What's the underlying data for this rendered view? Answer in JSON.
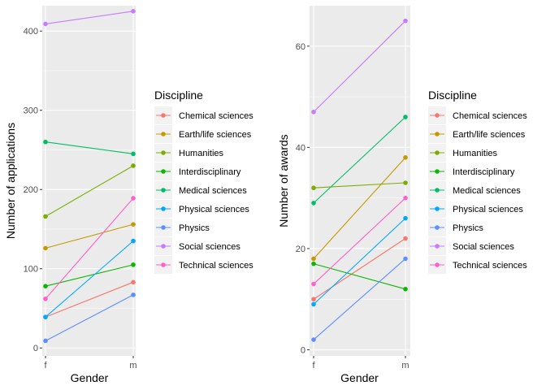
{
  "chart_data": [
    {
      "type": "line",
      "xlabel": "Gender",
      "ylabel": "Number of applications",
      "categories": [
        "f",
        "m"
      ],
      "yticks": [
        0,
        100,
        200,
        300,
        400
      ],
      "ylim": [
        -10,
        432
      ],
      "grid": true,
      "legend_title": "Discipline",
      "legend_position": "right",
      "series": [
        {
          "name": "Chemical sciences",
          "color": "#F8766D",
          "values": [
            39,
            83
          ]
        },
        {
          "name": "Earth/life sciences",
          "color": "#C49A00",
          "values": [
            126,
            156
          ]
        },
        {
          "name": "Humanities",
          "color": "#7CAE00",
          "values": [
            166,
            230
          ]
        },
        {
          "name": "Interdisciplinary",
          "color": "#0CB702",
          "values": [
            78,
            105
          ]
        },
        {
          "name": "Medical sciences",
          "color": "#00BE67",
          "values": [
            260,
            245
          ]
        },
        {
          "name": "Physical sciences",
          "color": "#00A9FF",
          "values": [
            39,
            135
          ]
        },
        {
          "name": "Physics",
          "color": "#5E8EFF",
          "values": [
            9,
            67
          ]
        },
        {
          "name": "Social sciences",
          "color": "#C77CFF",
          "values": [
            409,
            425
          ]
        },
        {
          "name": "Technical sciences",
          "color": "#FF61CC",
          "values": [
            62,
            189
          ]
        }
      ]
    },
    {
      "type": "line",
      "xlabel": "Gender",
      "ylabel": "Number of awards",
      "categories": [
        "f",
        "m"
      ],
      "yticks": [
        0,
        20,
        40,
        60
      ],
      "ylim": [
        -1.2,
        68
      ],
      "grid": true,
      "legend_title": "Discipline",
      "legend_position": "right",
      "series": [
        {
          "name": "Chemical sciences",
          "color": "#F8766D",
          "values": [
            10,
            22
          ]
        },
        {
          "name": "Earth/life sciences",
          "color": "#C49A00",
          "values": [
            18,
            38
          ]
        },
        {
          "name": "Humanities",
          "color": "#7CAE00",
          "values": [
            32,
            33
          ]
        },
        {
          "name": "Interdisciplinary",
          "color": "#0CB702",
          "values": [
            17,
            12
          ]
        },
        {
          "name": "Medical sciences",
          "color": "#00BE67",
          "values": [
            29,
            46
          ]
        },
        {
          "name": "Physical sciences",
          "color": "#00A9FF",
          "values": [
            9,
            26
          ]
        },
        {
          "name": "Physics",
          "color": "#5E8EFF",
          "values": [
            2,
            18
          ]
        },
        {
          "name": "Social sciences",
          "color": "#C77CFF",
          "values": [
            47,
            65
          ]
        },
        {
          "name": "Technical sciences",
          "color": "#FF61CC",
          "values": [
            13,
            30
          ]
        }
      ]
    }
  ]
}
